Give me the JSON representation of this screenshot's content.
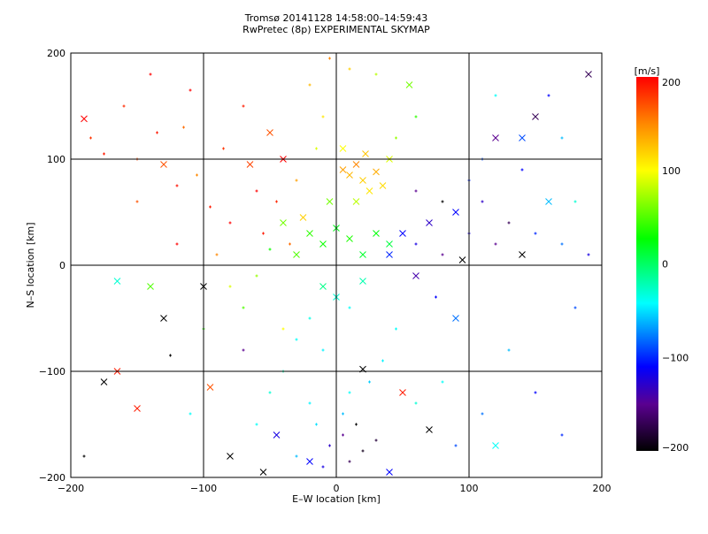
{
  "chart_data": {
    "type": "scatter",
    "title": "Tromsø 20141128 14:58:00–14:59:43",
    "subtitle": "RwPretec (8p) EXPERIMENTAL SKYMAP",
    "xlabel": "E–W location [km]",
    "ylabel": "N–S location [km]",
    "xlim": [
      -200,
      200
    ],
    "ylim": [
      -200,
      200
    ],
    "xticks": [
      -200,
      -100,
      0,
      100,
      200
    ],
    "yticks": [
      -200,
      -100,
      0,
      100,
      200
    ],
    "xtick_labels": [
      "−200",
      "−100",
      "0",
      "100",
      "200"
    ],
    "ytick_labels": [
      "−200",
      "−100",
      "0",
      "100",
      "200"
    ],
    "grid": true,
    "colorbar": {
      "label": "[m/s]",
      "range": [
        -200,
        200
      ],
      "ticks": [
        200,
        100,
        0,
        -100,
        -200
      ],
      "tick_labels": [
        "200",
        "100",
        "0",
        "−100",
        "−200"
      ],
      "colormap_stops": [
        {
          "value": -200,
          "color": "#000000"
        },
        {
          "value": -150,
          "color": "#5a0090"
        },
        {
          "value": -110,
          "color": "#0000ff"
        },
        {
          "value": -42,
          "color": "#00ffff"
        },
        {
          "value": 27,
          "color": "#00ff00"
        },
        {
          "value": 100,
          "color": "#ffff00"
        },
        {
          "value": 150,
          "color": "#ff8800"
        },
        {
          "value": 200,
          "color": "#ff0000"
        }
      ],
      "position": "right"
    },
    "points_format": [
      "x_km",
      "y_km",
      "velocity_m_s",
      "marker(0=dot,1=cross)"
    ],
    "points": [
      [
        -190,
        138,
        200,
        1
      ],
      [
        -185,
        120,
        180,
        0
      ],
      [
        -175,
        105,
        190,
        0
      ],
      [
        -160,
        150,
        185,
        0
      ],
      [
        -150,
        100,
        175,
        0
      ],
      [
        -140,
        180,
        200,
        0
      ],
      [
        -135,
        125,
        190,
        0
      ],
      [
        -130,
        95,
        170,
        1
      ],
      [
        -120,
        75,
        195,
        0
      ],
      [
        -115,
        130,
        160,
        0
      ],
      [
        -110,
        165,
        200,
        0
      ],
      [
        -105,
        85,
        150,
        0
      ],
      [
        -95,
        55,
        190,
        0
      ],
      [
        -85,
        110,
        180,
        0
      ],
      [
        -80,
        40,
        200,
        0
      ],
      [
        -70,
        150,
        190,
        0
      ],
      [
        -65,
        95,
        175,
        1
      ],
      [
        -60,
        70,
        200,
        0
      ],
      [
        -55,
        30,
        190,
        0
      ],
      [
        -50,
        125,
        170,
        1
      ],
      [
        -45,
        60,
        185,
        0
      ],
      [
        -40,
        100,
        200,
        1
      ],
      [
        -35,
        20,
        160,
        0
      ],
      [
        -30,
        80,
        140,
        0
      ],
      [
        -25,
        45,
        120,
        1
      ],
      [
        -20,
        170,
        130,
        0
      ],
      [
        -15,
        110,
        90,
        0
      ],
      [
        -10,
        140,
        110,
        0
      ],
      [
        -5,
        60,
        60,
        1
      ],
      [
        5,
        90,
        140,
        1
      ],
      [
        10,
        85,
        130,
        1
      ],
      [
        15,
        95,
        150,
        1
      ],
      [
        20,
        80,
        120,
        1
      ],
      [
        25,
        70,
        110,
        1
      ],
      [
        30,
        88,
        135,
        1
      ],
      [
        35,
        75,
        115,
        1
      ],
      [
        40,
        100,
        90,
        1
      ],
      [
        15,
        60,
        80,
        1
      ],
      [
        5,
        110,
        100,
        1
      ],
      [
        22,
        105,
        125,
        1
      ],
      [
        45,
        120,
        70,
        0
      ],
      [
        55,
        170,
        60,
        1
      ],
      [
        60,
        140,
        40,
        0
      ],
      [
        30,
        180,
        80,
        0
      ],
      [
        10,
        185,
        120,
        0
      ],
      [
        -5,
        195,
        150,
        0
      ],
      [
        -20,
        30,
        40,
        1
      ],
      [
        -10,
        20,
        30,
        1
      ],
      [
        0,
        35,
        20,
        1
      ],
      [
        10,
        25,
        35,
        1
      ],
      [
        20,
        10,
        15,
        1
      ],
      [
        30,
        30,
        25,
        1
      ],
      [
        40,
        20,
        10,
        1
      ],
      [
        -30,
        10,
        50,
        1
      ],
      [
        -40,
        40,
        60,
        1
      ],
      [
        -50,
        15,
        30,
        0
      ],
      [
        -60,
        -10,
        70,
        0
      ],
      [
        -70,
        -40,
        50,
        0
      ],
      [
        -80,
        -20,
        90,
        0
      ],
      [
        -90,
        10,
        150,
        0
      ],
      [
        -100,
        -60,
        40,
        0
      ],
      [
        -120,
        20,
        200,
        0
      ],
      [
        -140,
        -20,
        50,
        1
      ],
      [
        -150,
        60,
        170,
        0
      ],
      [
        -10,
        -20,
        -10,
        1
      ],
      [
        0,
        -30,
        -30,
        1
      ],
      [
        10,
        -40,
        -40,
        0
      ],
      [
        20,
        -15,
        -20,
        1
      ],
      [
        -20,
        -50,
        -35,
        0
      ],
      [
        -30,
        -70,
        -40,
        0
      ],
      [
        -10,
        -80,
        -45,
        0
      ],
      [
        0,
        -100,
        -50,
        0
      ],
      [
        10,
        -120,
        -40,
        0
      ],
      [
        -20,
        -130,
        -45,
        0
      ],
      [
        -15,
        -150,
        -50,
        0
      ],
      [
        5,
        -140,
        -60,
        0
      ],
      [
        25,
        -110,
        -55,
        0
      ],
      [
        35,
        -90,
        -45,
        0
      ],
      [
        45,
        -60,
        -40,
        0
      ],
      [
        -40,
        -100,
        -20,
        0
      ],
      [
        -50,
        -120,
        -30,
        0
      ],
      [
        -60,
        -150,
        -40,
        0
      ],
      [
        -30,
        -180,
        -60,
        0
      ],
      [
        -5,
        -170,
        -130,
        0
      ],
      [
        5,
        -160,
        -150,
        0
      ],
      [
        10,
        -185,
        -170,
        0
      ],
      [
        20,
        -175,
        -190,
        0
      ],
      [
        -10,
        -190,
        -120,
        0
      ],
      [
        15,
        -150,
        -200,
        0
      ],
      [
        30,
        -165,
        -180,
        0
      ],
      [
        40,
        10,
        -100,
        1
      ],
      [
        50,
        30,
        -110,
        1
      ],
      [
        60,
        20,
        -120,
        0
      ],
      [
        70,
        40,
        -130,
        1
      ],
      [
        80,
        10,
        -150,
        0
      ],
      [
        90,
        50,
        -110,
        1
      ],
      [
        100,
        30,
        -120,
        0
      ],
      [
        110,
        60,
        -130,
        0
      ],
      [
        120,
        20,
        -150,
        0
      ],
      [
        130,
        40,
        -170,
        0
      ],
      [
        140,
        10,
        -200,
        1
      ],
      [
        60,
        -10,
        -140,
        1
      ],
      [
        75,
        -30,
        -110,
        0
      ],
      [
        90,
        -50,
        -80,
        1
      ],
      [
        100,
        80,
        -100,
        0
      ],
      [
        110,
        100,
        -90,
        0
      ],
      [
        120,
        120,
        -150,
        1
      ],
      [
        140,
        90,
        -110,
        0
      ],
      [
        150,
        30,
        -100,
        0
      ],
      [
        160,
        60,
        -60,
        1
      ],
      [
        170,
        20,
        -80,
        0
      ],
      [
        180,
        -40,
        -90,
        0
      ],
      [
        190,
        10,
        -120,
        0
      ],
      [
        60,
        70,
        -150,
        0
      ],
      [
        80,
        60,
        -200,
        0
      ],
      [
        95,
        5,
        -200,
        1
      ],
      [
        120,
        160,
        -40,
        0
      ],
      [
        140,
        120,
        -90,
        1
      ],
      [
        150,
        140,
        -170,
        1
      ],
      [
        170,
        120,
        -60,
        0
      ],
      [
        190,
        180,
        -170,
        1
      ],
      [
        160,
        160,
        -110,
        0
      ],
      [
        180,
        60,
        -30,
        0
      ],
      [
        -175,
        -110,
        -200,
        1
      ],
      [
        -165,
        -100,
        190,
        1
      ],
      [
        -150,
        -135,
        190,
        1
      ],
      [
        -130,
        -50,
        -200,
        1
      ],
      [
        -125,
        -85,
        -200,
        0
      ],
      [
        -110,
        -140,
        -40,
        0
      ],
      [
        -95,
        -115,
        170,
        1
      ],
      [
        -80,
        -180,
        -200,
        1
      ],
      [
        -70,
        -80,
        -150,
        0
      ],
      [
        -55,
        -195,
        -200,
        1
      ],
      [
        -45,
        -160,
        -120,
        1
      ],
      [
        -40,
        -60,
        100,
        0
      ],
      [
        -100,
        -20,
        -200,
        1
      ],
      [
        -20,
        -185,
        -110,
        1
      ],
      [
        60,
        -130,
        -30,
        0
      ],
      [
        70,
        -155,
        -200,
        1
      ],
      [
        80,
        -110,
        -40,
        0
      ],
      [
        90,
        -170,
        -90,
        0
      ],
      [
        110,
        -140,
        -80,
        0
      ],
      [
        120,
        -170,
        -40,
        1
      ],
      [
        150,
        -120,
        -110,
        0
      ],
      [
        170,
        -160,
        -100,
        0
      ],
      [
        40,
        -195,
        -110,
        1
      ],
      [
        50,
        -120,
        190,
        1
      ],
      [
        20,
        -98,
        -200,
        1
      ],
      [
        130,
        -80,
        -60,
        0
      ],
      [
        -165,
        -15,
        -30,
        1
      ],
      [
        -190,
        -180,
        -200,
        0
      ]
    ]
  }
}
